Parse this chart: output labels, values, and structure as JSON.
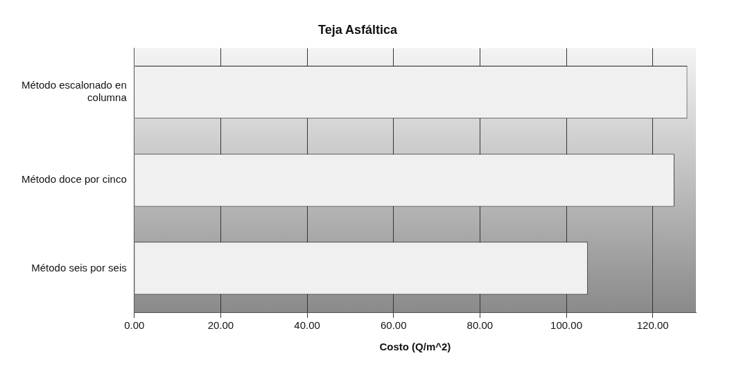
{
  "chart_data": {
    "type": "bar",
    "orientation": "horizontal",
    "title": "Teja Asfáltica",
    "xlabel": "Costo (Q/m^2)",
    "categories": [
      [
        "Método escalonado en",
        "columna"
      ],
      "Método doce por cinco",
      "Método seis por seis"
    ],
    "values": [
      128,
      125,
      105
    ],
    "color": "#f0f0f0",
    "xlim": [
      0,
      130
    ],
    "xticks": [
      {
        "value": 0,
        "label": "0.00"
      },
      {
        "value": 20,
        "label": "20.00"
      },
      {
        "value": 40,
        "label": "40.00"
      },
      {
        "value": 60,
        "label": "60.00"
      },
      {
        "value": 80,
        "label": "80.00"
      },
      {
        "value": 100,
        "label": "100.00"
      },
      {
        "value": 120,
        "label": "120.00"
      }
    ],
    "grid": "x",
    "legend": false
  }
}
